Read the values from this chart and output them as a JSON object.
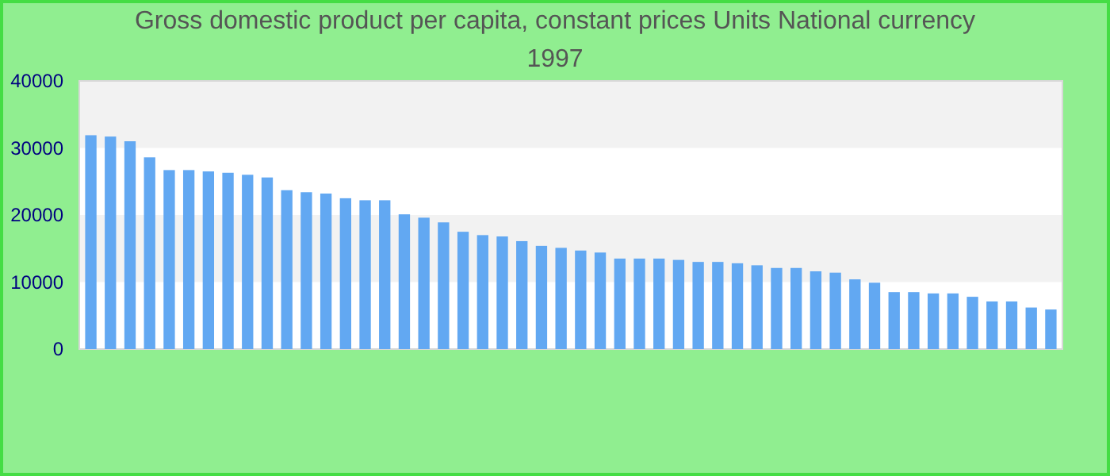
{
  "chart_data": {
    "type": "bar",
    "title": "Gross domestic product per capita, constant prices Units National currency 1997",
    "categories": [
      null,
      null,
      null,
      null,
      null,
      null,
      null,
      null,
      null,
      null,
      null,
      null,
      null,
      null,
      null,
      null,
      null,
      null,
      null,
      null,
      null,
      null,
      null,
      null,
      null,
      null,
      null,
      null,
      null,
      null,
      null,
      null,
      null,
      null,
      null,
      null,
      null,
      null,
      null,
      null,
      null,
      null,
      null,
      null,
      null,
      null,
      null,
      null,
      null,
      null
    ],
    "values": [
      31900,
      31700,
      31000,
      28600,
      26700,
      26700,
      26500,
      26300,
      26000,
      25600,
      23700,
      23400,
      23200,
      22500,
      22200,
      22200,
      20100,
      19600,
      18900,
      17500,
      17000,
      16800,
      16100,
      15400,
      15100,
      14700,
      14400,
      13500,
      13500,
      13500,
      13300,
      13000,
      13000,
      12800,
      12500,
      12100,
      12100,
      11600,
      11400,
      10400,
      9900,
      8500,
      8500,
      8300,
      8300,
      7800,
      7100,
      7100,
      6200,
      5900
    ],
    "color": "#62a8f2",
    "ylim": [
      0,
      40000
    ],
    "yticks": [
      0,
      10000,
      20000,
      30000,
      40000
    ],
    "bands": [
      {
        "axis": "y",
        "from": 10000,
        "to": 20000,
        "color": "#f2f2f2"
      },
      {
        "axis": "y",
        "from": 30000,
        "to": 40000,
        "color": "#f2f2f2"
      }
    ]
  }
}
